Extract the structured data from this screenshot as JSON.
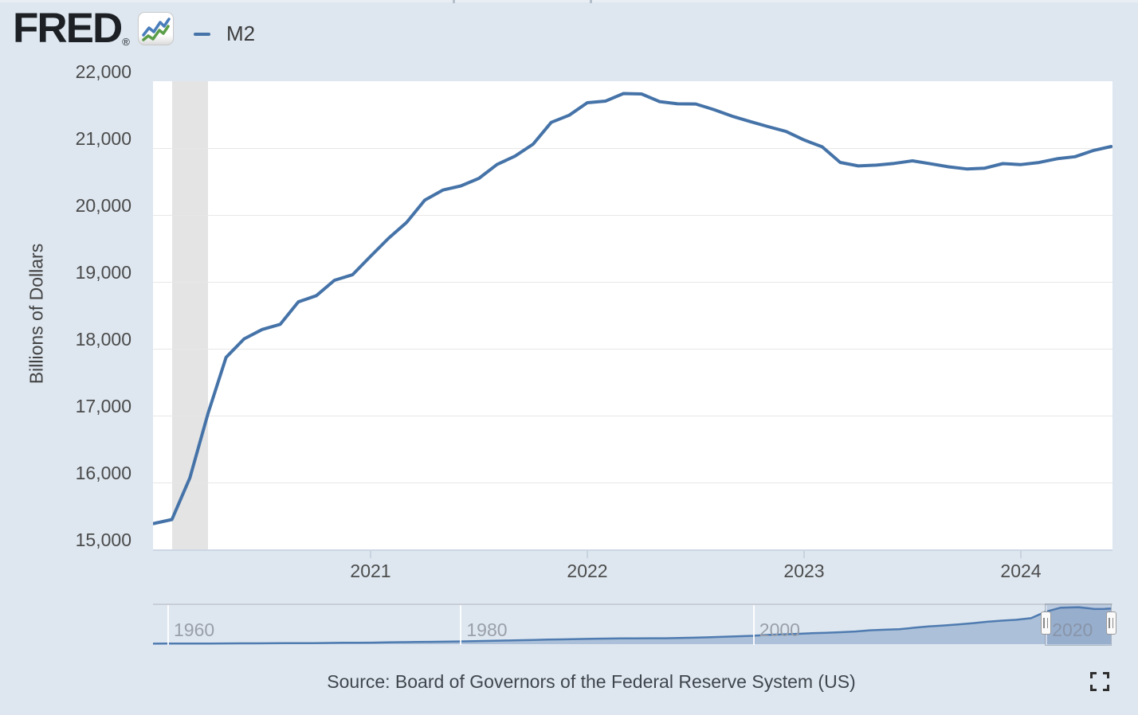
{
  "page": {
    "background": "#dee7f0"
  },
  "header": {
    "logo_text": "FRED",
    "registered_mark": "®",
    "logo_chart_icon": "line-chart-icon",
    "legend": {
      "label": "M2",
      "line_color": "#4573a8"
    }
  },
  "y_axis": {
    "title": "Billions of Dollars",
    "labels": [
      "22,000",
      "21,000",
      "20,000",
      "19,000",
      "18,000",
      "17,000",
      "16,000",
      "15,000"
    ]
  },
  "x_axis": {
    "labels": [
      "2021",
      "2022",
      "2023",
      "2024"
    ]
  },
  "navigator": {
    "labels": [
      "1960",
      "1980",
      "2000",
      "2020"
    ]
  },
  "footer": {
    "source_text": "Source: Board of Governors of the Federal Reserve System (US)",
    "fullscreen_icon": "fullscreen-icon"
  },
  "colors": {
    "background": "#dee7f0",
    "plot_background": "#ffffff",
    "series_line": "#4573a8",
    "gridline": "#e7e7e7",
    "recession_band": "#e4e4e4",
    "axis_line": "#ccd6e3",
    "navigator_fill": "rgba(79,123,176,0.35)",
    "navigator_line": "#4f7bb0",
    "navigator_mask": "rgba(87,118,173,0.25)"
  },
  "chart_data": [
    {
      "type": "line",
      "name": "M2",
      "ylabel": "Billions of Dollars",
      "frequency": "monthly",
      "x_start": "2020-01",
      "x_end": "2024-06",
      "ylim": [
        15000,
        22000
      ],
      "ytick_interval": 1000,
      "x_tick_years": [
        2021,
        2022,
        2023,
        2024
      ],
      "recession_band": {
        "start": "2020-02",
        "end": "2020-04"
      },
      "values": [
        15387,
        15446,
        16070,
        17032,
        17872,
        18148,
        18288,
        18365,
        18700,
        18794,
        19024,
        19106,
        19382,
        19654,
        19889,
        20222,
        20373,
        20435,
        20548,
        20755,
        20880,
        21060,
        21384,
        21492,
        21679,
        21702,
        21816,
        21810,
        21695,
        21662,
        21659,
        21576,
        21478,
        21398,
        21322,
        21249,
        21121,
        21019,
        20786,
        20733,
        20745,
        20771,
        20810,
        20766,
        20720,
        20688,
        20700,
        20768,
        20753,
        20785,
        20841,
        20872,
        20963,
        21024
      ]
    },
    {
      "type": "area",
      "name": "M2 full history (range selector)",
      "x_tick_years": [
        1960,
        1980,
        2000,
        2020
      ],
      "selected_window_years": [
        2020.0,
        2024.46
      ],
      "ylim": [
        0,
        23500
      ],
      "points": [
        [
          1959,
          298
        ],
        [
          1960,
          312
        ],
        [
          1961,
          336
        ],
        [
          1962,
          363
        ],
        [
          1963,
          393
        ],
        [
          1964,
          425
        ],
        [
          1965,
          459
        ],
        [
          1966,
          480
        ],
        [
          1967,
          525
        ],
        [
          1968,
          567
        ],
        [
          1969,
          588
        ],
        [
          1970,
          627
        ],
        [
          1971,
          710
        ],
        [
          1972,
          802
        ],
        [
          1973,
          856
        ],
        [
          1974,
          902
        ],
        [
          1975,
          1016
        ],
        [
          1976,
          1152
        ],
        [
          1977,
          1270
        ],
        [
          1978,
          1366
        ],
        [
          1979,
          1473
        ],
        [
          1980,
          1599
        ],
        [
          1981,
          1755
        ],
        [
          1982,
          1905
        ],
        [
          1983,
          2123
        ],
        [
          1984,
          2306
        ],
        [
          1985,
          2492
        ],
        [
          1986,
          2728
        ],
        [
          1987,
          2826
        ],
        [
          1988,
          2988
        ],
        [
          1989,
          3152
        ],
        [
          1990,
          3272
        ],
        [
          1991,
          3372
        ],
        [
          1992,
          3425
        ],
        [
          1993,
          3475
        ],
        [
          1994,
          3486
        ],
        [
          1995,
          3629
        ],
        [
          1996,
          3818
        ],
        [
          1997,
          4033
        ],
        [
          1998,
          4375
        ],
        [
          1999,
          4638
        ],
        [
          2000,
          4921
        ],
        [
          2001,
          5430
        ],
        [
          2002,
          5774
        ],
        [
          2003,
          6066
        ],
        [
          2004,
          6417
        ],
        [
          2005,
          6680
        ],
        [
          2006,
          7070
        ],
        [
          2007,
          7469
        ],
        [
          2008,
          8190
        ],
        [
          2009,
          8493
        ],
        [
          2010,
          8797
        ],
        [
          2011,
          9659
        ],
        [
          2012,
          10450
        ],
        [
          2013,
          11020
        ],
        [
          2014,
          11674
        ],
        [
          2015,
          12340
        ],
        [
          2016,
          13214
        ],
        [
          2017,
          13855
        ],
        [
          2018,
          14367
        ],
        [
          2019,
          15327
        ],
        [
          2020,
          19106
        ],
        [
          2021,
          21492
        ],
        [
          2022.25,
          21810
        ],
        [
          2023,
          21121
        ],
        [
          2023.3,
          20733
        ],
        [
          2024,
          20768
        ],
        [
          2024.46,
          21024
        ]
      ]
    }
  ]
}
